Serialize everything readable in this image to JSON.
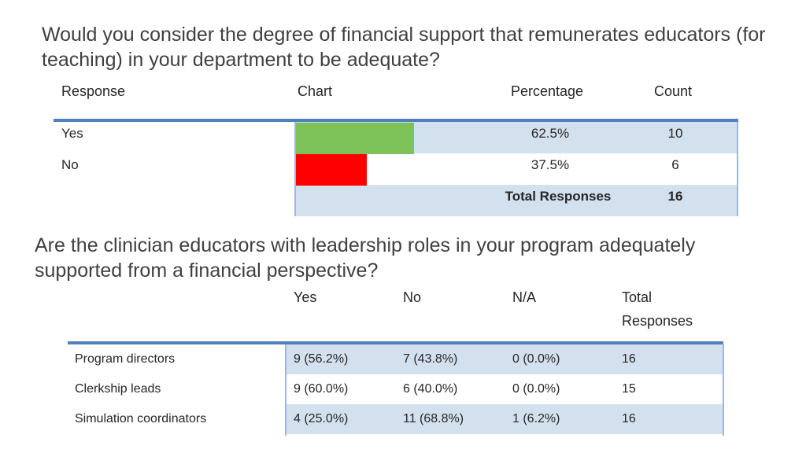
{
  "question1": {
    "title": "Would you consider the degree of financial support that remunerates educators (for teaching) in your department to be adequate?",
    "headers": {
      "response": "Response",
      "chart": "Chart",
      "percentage": "Percentage",
      "count": "Count"
    },
    "rows": [
      {
        "response": "Yes",
        "percentage": "62.5%",
        "count": "10",
        "fraction": 0.625,
        "color": "#7dc35a"
      },
      {
        "response": "No",
        "percentage": "37.5%",
        "count": "6",
        "fraction": 0.375,
        "color": "#ff0000"
      }
    ],
    "total": {
      "label": "Total Responses",
      "count": "16"
    }
  },
  "question2": {
    "title": "Are the clinician educators with leadership roles in your program adequately supported from a financial perspective?",
    "headers": {
      "yes": "Yes",
      "no": "No",
      "na": "N/A",
      "total": "Total Responses"
    },
    "rows": [
      {
        "label": "Program directors",
        "yes": "9 (56.2%)",
        "no": "7 (43.8%)",
        "na": "0 (0.0%)",
        "total": "16"
      },
      {
        "label": "Clerkship leads",
        "yes": "9 (60.0%)",
        "no": "6 (40.0%)",
        "na": "0 (0.0%)",
        "total": "15"
      },
      {
        "label": "Simulation coordinators",
        "yes": "4 (25.0%)",
        "no": "11 (68.8%)",
        "na": "1 (6.2%)",
        "total": "16"
      }
    ]
  },
  "colors": {
    "header_rule": "#4f81bd",
    "band": "#d3e1ef",
    "yes_bar": "#7dc35a",
    "no_bar": "#ff0000"
  }
}
